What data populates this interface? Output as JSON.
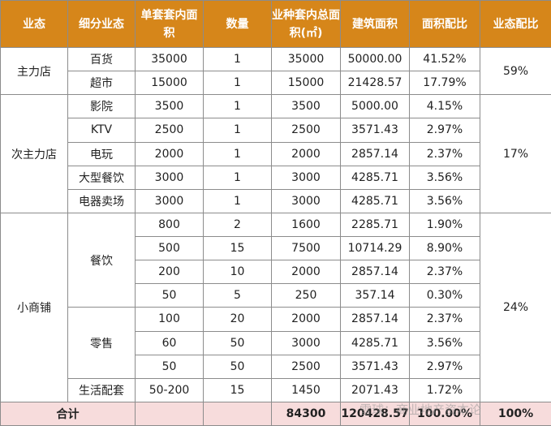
{
  "colors": {
    "header_bg": "#d6861a",
    "header_text": "#ffffff",
    "total_bg": "#f7dcdc",
    "border": "#8c8c8c"
  },
  "headers": [
    "业态",
    "细分业态",
    "单套套内面积",
    "数量",
    "业种套内总面积(㎡)",
    "建筑面积",
    "面积配比",
    "业态配比"
  ],
  "groups": [
    {
      "label": "主力店",
      "ratio": "59%"
    },
    {
      "label": "次主力店",
      "ratio": "17%"
    },
    {
      "label": "小商铺",
      "ratio": "24%"
    }
  ],
  "subgroups": [
    "百货",
    "超市",
    "影院",
    "KTV",
    "电玩",
    "大型餐饮",
    "电器卖场",
    "餐饮",
    "零售",
    "生活配套"
  ],
  "rows": [
    {
      "unit": "35000",
      "qty": "1",
      "total": "35000",
      "build": "50000.00",
      "pct": "41.52%"
    },
    {
      "unit": "15000",
      "qty": "1",
      "total": "15000",
      "build": "21428.57",
      "pct": "17.79%"
    },
    {
      "unit": "3500",
      "qty": "1",
      "total": "3500",
      "build": "5000.00",
      "pct": "4.15%"
    },
    {
      "unit": "2500",
      "qty": "1",
      "total": "2500",
      "build": "3571.43",
      "pct": "2.97%"
    },
    {
      "unit": "2000",
      "qty": "1",
      "total": "2000",
      "build": "2857.14",
      "pct": "2.37%"
    },
    {
      "unit": "3000",
      "qty": "1",
      "total": "3000",
      "build": "4285.71",
      "pct": "3.56%"
    },
    {
      "unit": "3000",
      "qty": "1",
      "total": "3000",
      "build": "4285.71",
      "pct": "3.56%"
    },
    {
      "unit": "800",
      "qty": "2",
      "total": "1600",
      "build": "2285.71",
      "pct": "1.90%"
    },
    {
      "unit": "500",
      "qty": "15",
      "total": "7500",
      "build": "10714.29",
      "pct": "8.90%"
    },
    {
      "unit": "200",
      "qty": "10",
      "total": "2000",
      "build": "2857.14",
      "pct": "2.37%"
    },
    {
      "unit": "50",
      "qty": "5",
      "total": "250",
      "build": "357.14",
      "pct": "0.30%"
    },
    {
      "unit": "100",
      "qty": "20",
      "total": "2000",
      "build": "2857.14",
      "pct": "2.37%"
    },
    {
      "unit": "60",
      "qty": "50",
      "total": "3000",
      "build": "4285.71",
      "pct": "3.56%"
    },
    {
      "unit": "50",
      "qty": "50",
      "total": "2500",
      "build": "3571.43",
      "pct": "2.97%"
    },
    {
      "unit": "50-200",
      "qty": "15",
      "total": "1450",
      "build": "2071.43",
      "pct": "1.72%"
    }
  ],
  "total": {
    "label": "合计",
    "total": "84300",
    "build": "120428.57",
    "pct": "100.00%",
    "ratio": "100%"
  },
  "watermark": "雪球：商业地产资本论"
}
